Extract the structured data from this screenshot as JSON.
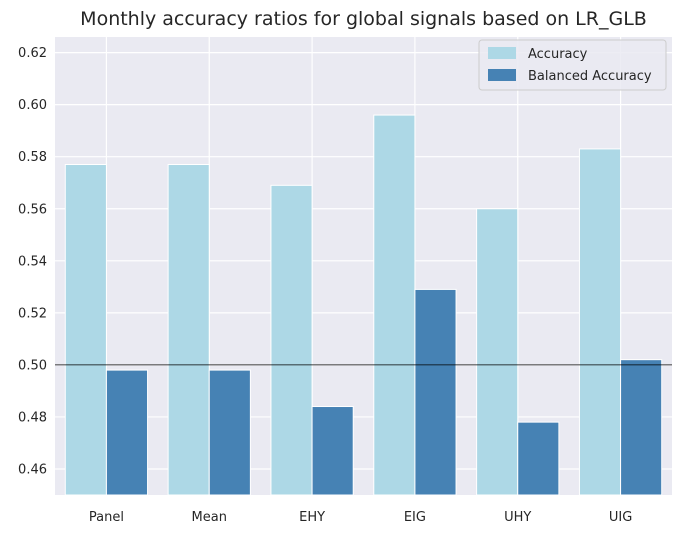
{
  "chart_data": {
    "type": "bar",
    "title": "Monthly accuracy ratios for global signals based on LR_GLB",
    "xlabel": "",
    "ylabel": "",
    "categories": [
      "Panel",
      "Mean",
      "EHY",
      "EIG",
      "UHY",
      "UIG"
    ],
    "series": [
      {
        "name": "Accuracy",
        "color": "#add8e6",
        "values": [
          0.577,
          0.577,
          0.569,
          0.596,
          0.56,
          0.583
        ]
      },
      {
        "name": "Balanced Accuracy",
        "color": "#4682b4",
        "values": [
          0.498,
          0.498,
          0.484,
          0.529,
          0.478,
          0.502
        ]
      }
    ],
    "ylim": [
      0.45,
      0.626
    ],
    "yticks": [
      0.46,
      0.48,
      0.5,
      0.52,
      0.54,
      0.56,
      0.58,
      0.6,
      0.62
    ],
    "ytick_labels": [
      "0.46",
      "0.48",
      "0.50",
      "0.52",
      "0.54",
      "0.56",
      "0.58",
      "0.60",
      "0.62"
    ],
    "reference_line": 0.5,
    "grid": true,
    "legend_position": "top-right",
    "style": {
      "background": "#eaeaf2",
      "grid_color": "#ffffff",
      "reference_color": "#000000"
    }
  }
}
